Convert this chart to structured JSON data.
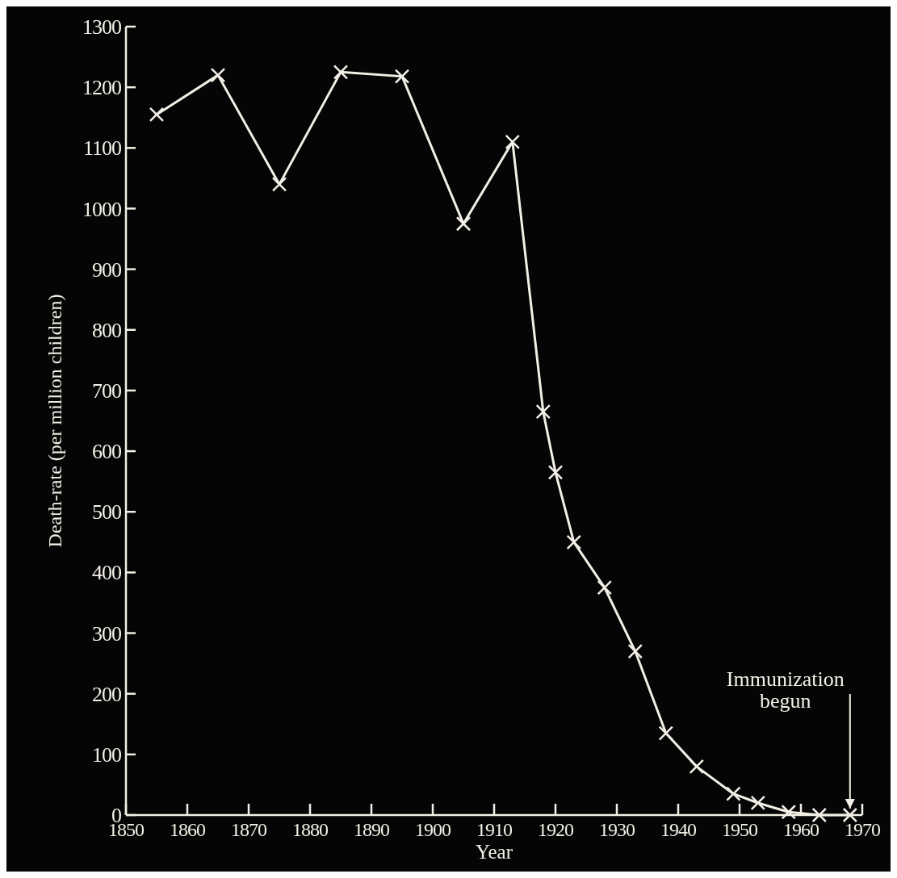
{
  "chart_data": {
    "type": "line",
    "xlabel": "Year",
    "ylabel": "Death-rate (per million children)",
    "x": [
      1855,
      1865,
      1875,
      1885,
      1895,
      1905,
      1913,
      1918,
      1920,
      1923,
      1928,
      1933,
      1938,
      1943,
      1949,
      1953,
      1958,
      1963,
      1968
    ],
    "series": [
      {
        "color": "#f2f0e6",
        "values": [
          1155,
          1220,
          1040,
          1225,
          1218,
          975,
          1110,
          665,
          565,
          450,
          375,
          270,
          135,
          80,
          35,
          20,
          5,
          0,
          0
        ]
      }
    ],
    "xlim": [
      1850,
      1970
    ],
    "xticks": [
      1850,
      1860,
      1870,
      1880,
      1890,
      1900,
      1910,
      1920,
      1930,
      1940,
      1950,
      1960,
      1970
    ],
    "ylim": [
      0,
      1300
    ],
    "yticks": [
      0,
      100,
      200,
      300,
      400,
      500,
      600,
      700,
      800,
      900,
      1000,
      1100,
      1200,
      1300
    ],
    "grid": false,
    "marker": "cross",
    "line_style": "solid",
    "annotations": [
      {
        "text": "Immunization\nbegun",
        "x": 1968,
        "y": 0
      }
    ]
  }
}
